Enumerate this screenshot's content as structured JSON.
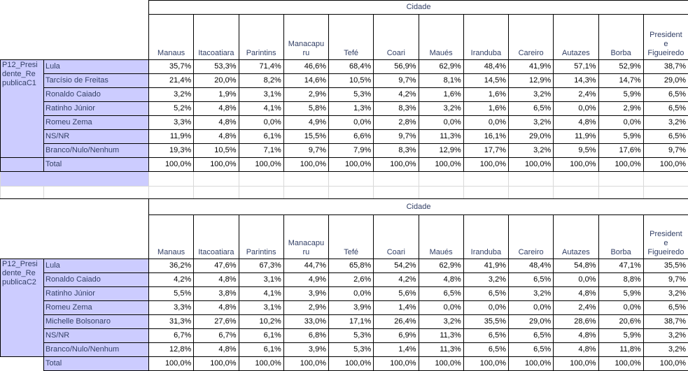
{
  "header": {
    "cidade_label": "Cidade"
  },
  "cities": [
    "Manaus",
    "Itacoatiara",
    "Parintins",
    "Manacapuru",
    "Tefé",
    "Coari",
    "Maués",
    "Iranduba",
    "Careiro",
    "Autazes",
    "Borba",
    "Presidente Figueiredo"
  ],
  "tables": [
    {
      "id_label": "P12_Presidente_RepublicaC1",
      "rows": [
        {
          "label": "Lula",
          "values": [
            "35,7%",
            "53,3%",
            "71,4%",
            "46,6%",
            "68,4%",
            "56,9%",
            "62,9%",
            "48,4%",
            "41,9%",
            "57,1%",
            "52,9%",
            "38,7%"
          ]
        },
        {
          "label": "Tarcísio de Freitas",
          "values": [
            "21,4%",
            "20,0%",
            "8,2%",
            "14,6%",
            "10,5%",
            "9,7%",
            "8,1%",
            "14,5%",
            "12,9%",
            "14,3%",
            "14,7%",
            "29,0%"
          ]
        },
        {
          "label": "Ronaldo Caiado",
          "values": [
            "3,2%",
            "1,9%",
            "3,1%",
            "2,9%",
            "5,3%",
            "4,2%",
            "1,6%",
            "1,6%",
            "3,2%",
            "2,4%",
            "5,9%",
            "6,5%"
          ]
        },
        {
          "label": "Ratinho Júnior",
          "values": [
            "5,2%",
            "4,8%",
            "4,1%",
            "5,8%",
            "1,3%",
            "8,3%",
            "3,2%",
            "1,6%",
            "6,5%",
            "0,0%",
            "2,9%",
            "6,5%"
          ]
        },
        {
          "label": "Romeu Zema",
          "values": [
            "3,3%",
            "4,8%",
            "0,0%",
            "4,9%",
            "0,0%",
            "2,8%",
            "0,0%",
            "0,0%",
            "3,2%",
            "4,8%",
            "0,0%",
            "3,2%"
          ]
        },
        {
          "label": "NS/NR",
          "values": [
            "11,9%",
            "4,8%",
            "6,1%",
            "15,5%",
            "6,6%",
            "9,7%",
            "11,3%",
            "16,1%",
            "29,0%",
            "11,9%",
            "5,9%",
            "6,5%"
          ]
        },
        {
          "label": "Branco/Nulo/Nenhum",
          "values": [
            "19,3%",
            "10,5%",
            "7,1%",
            "9,7%",
            "7,9%",
            "8,3%",
            "12,9%",
            "17,7%",
            "3,2%",
            "9,5%",
            "17,6%",
            "9,7%"
          ]
        },
        {
          "label": "Total",
          "values": [
            "100,0%",
            "100,0%",
            "100,0%",
            "100,0%",
            "100,0%",
            "100,0%",
            "100,0%",
            "100,0%",
            "100,0%",
            "100,0%",
            "100,0%",
            "100,0%"
          ]
        }
      ]
    },
    {
      "id_label": "P12_Presidente_RepublicaC2",
      "rows": [
        {
          "label": "Lula",
          "values": [
            "36,2%",
            "47,6%",
            "67,3%",
            "44,7%",
            "65,8%",
            "54,2%",
            "62,9%",
            "41,9%",
            "48,4%",
            "54,8%",
            "47,1%",
            "35,5%"
          ]
        },
        {
          "label": "Ronaldo Caiado",
          "values": [
            "4,2%",
            "4,8%",
            "3,1%",
            "4,9%",
            "2,6%",
            "4,2%",
            "4,8%",
            "3,2%",
            "6,5%",
            "0,0%",
            "8,8%",
            "9,7%"
          ]
        },
        {
          "label": "Ratinho Júnior",
          "values": [
            "5,5%",
            "3,8%",
            "4,1%",
            "3,9%",
            "0,0%",
            "5,6%",
            "6,5%",
            "6,5%",
            "3,2%",
            "4,8%",
            "5,9%",
            "3,2%"
          ]
        },
        {
          "label": "Romeu Zema",
          "values": [
            "3,3%",
            "4,8%",
            "3,1%",
            "2,9%",
            "3,9%",
            "1,4%",
            "0,0%",
            "0,0%",
            "0,0%",
            "2,4%",
            "0,0%",
            "6,5%"
          ]
        },
        {
          "label": "Michelle Bolsonaro",
          "values": [
            "31,3%",
            "27,6%",
            "10,2%",
            "33,0%",
            "17,1%",
            "26,4%",
            "3,2%",
            "35,5%",
            "29,0%",
            "28,6%",
            "20,6%",
            "38,7%"
          ]
        },
        {
          "label": "NS/NR",
          "values": [
            "6,7%",
            "6,7%",
            "6,1%",
            "6,8%",
            "5,3%",
            "6,9%",
            "11,3%",
            "6,5%",
            "6,5%",
            "4,8%",
            "5,9%",
            "3,2%"
          ]
        },
        {
          "label": "Branco/Nulo/Nenhum",
          "values": [
            "12,8%",
            "4,8%",
            "6,1%",
            "3,9%",
            "5,3%",
            "1,4%",
            "11,3%",
            "6,5%",
            "6,5%",
            "4,8%",
            "11,8%",
            "3,2%"
          ]
        },
        {
          "label": "Total",
          "values": [
            "100,0%",
            "100,0%",
            "100,0%",
            "100,0%",
            "100,0%",
            "100,0%",
            "100,0%",
            "100,0%",
            "100,0%",
            "100,0%",
            "100,0%",
            "100,0%"
          ]
        }
      ]
    }
  ],
  "colors": {
    "label_bg": "#ccccff",
    "label_text": "#334066",
    "header_text": "#334066",
    "value_text": "#000000",
    "table_border": "#000000",
    "gridline": "#d8d8d8"
  }
}
